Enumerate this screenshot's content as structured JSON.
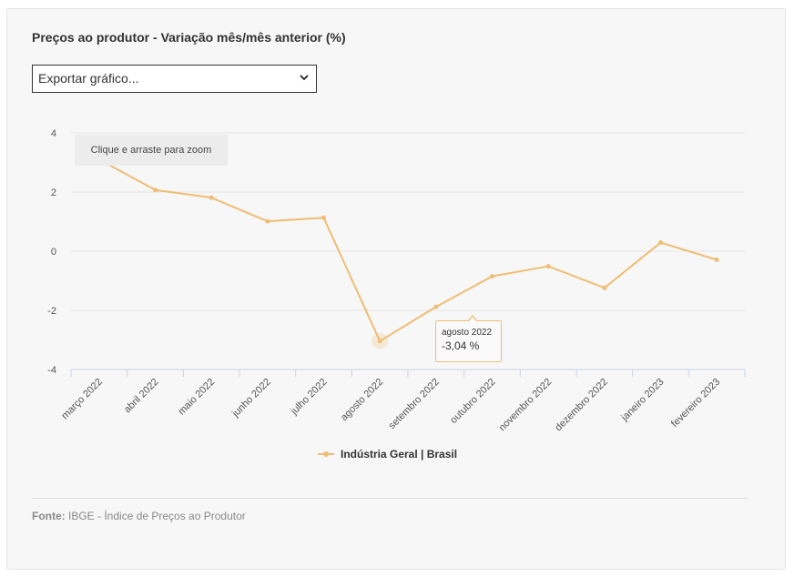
{
  "header": {
    "title": "Preços ao produtor - Variação mês/mês anterior (%)"
  },
  "export_select": {
    "selected": "Exportar gráfico..."
  },
  "zoom_hint": "Clique e arraste para zoom",
  "tooltip": {
    "label": "agosto 2022",
    "value": "-3,04 %"
  },
  "source": {
    "label": "Fonte:",
    "text": "IBGE - Índice de Preços ao Produtor"
  },
  "colors": {
    "series": "#efbd73",
    "grid": "#e6e6e6",
    "axis": "#c8d4e8"
  },
  "chart_data": {
    "type": "line",
    "title": "Preços ao produtor - Variação mês/mês anterior (%)",
    "categories": [
      "março 2022",
      "abril 2022",
      "maio 2022",
      "junho 2022",
      "julho 2022",
      "agosto 2022",
      "setembro 2022",
      "outubro 2022",
      "novembro 2022",
      "dezembro 2022",
      "janeiro 2023",
      "fevereiro 2023"
    ],
    "series": [
      {
        "name": "Indústria Geral | Brasil",
        "values": [
          3.1,
          2.07,
          1.81,
          1.01,
          1.13,
          -3.04,
          -1.88,
          -0.85,
          -0.51,
          -1.24,
          0.29,
          -0.29
        ]
      }
    ],
    "y_ticks": [
      "4",
      "2",
      "0",
      "-2",
      "-4"
    ],
    "ylim": [
      -4,
      4
    ],
    "grid": true,
    "legend_position": "bottom-center",
    "highlight_index": 5
  }
}
